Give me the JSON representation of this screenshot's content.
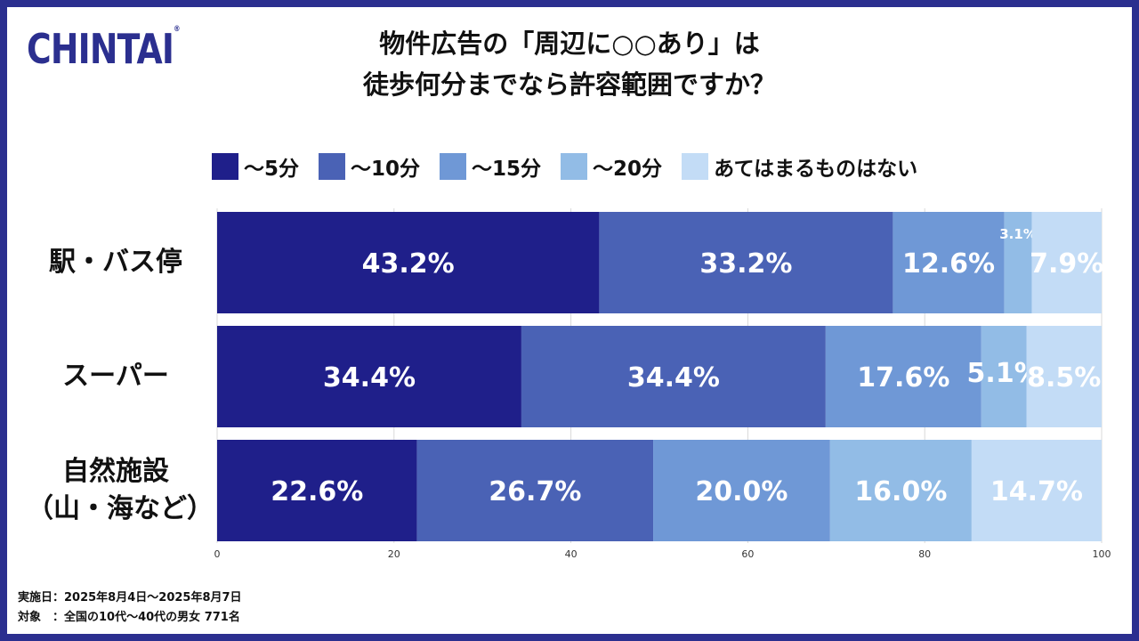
{
  "logo": {
    "text": "CHINTAI",
    "mark": "®"
  },
  "title_line1": "物件広告の「周辺に○○あり」は",
  "title_line2": "徒歩何分までなら許容範囲ですか？",
  "colors": {
    "frame": "#2b2f8f",
    "s1": "#1f1f8a",
    "s2": "#4a62b5",
    "s3": "#6f98d6",
    "s4": "#92bce6",
    "s5": "#c3dcf6"
  },
  "notes": {
    "date": "実施日：2025年8月4日〜2025年8月7日",
    "target": "対象　：全国の10代〜40代の男女 771名"
  },
  "chart_data": {
    "type": "bar",
    "orientation": "horizontal",
    "stacked": true,
    "title": "物件広告の「周辺に○○あり」は 徒歩何分までなら許容範囲ですか？",
    "categories": [
      "駅・バス停",
      "スーパー",
      "自然施設（山・海など）"
    ],
    "category_lines": [
      [
        "駅・バス停"
      ],
      [
        "スーパー"
      ],
      [
        "自然施設",
        "（山・海など）"
      ]
    ],
    "series": [
      {
        "name": "〜5分",
        "values": [
          43.2,
          34.4,
          22.6
        ],
        "labels": [
          "43.2%",
          "34.4%",
          "22.6%"
        ]
      },
      {
        "name": "〜10分",
        "values": [
          33.2,
          34.4,
          26.7
        ],
        "labels": [
          "33.2%",
          "34.4%",
          "26.7%"
        ]
      },
      {
        "name": "〜15分",
        "values": [
          12.6,
          17.6,
          20.0
        ],
        "labels": [
          "12.6%",
          "17.6%",
          "20.0%"
        ]
      },
      {
        "name": "〜20分",
        "values": [
          3.1,
          5.1,
          16.0
        ],
        "labels": [
          "3.1%",
          "5.1%",
          "16.0%"
        ]
      },
      {
        "name": "あてはまるものはない",
        "values": [
          7.9,
          8.5,
          14.7
        ],
        "labels": [
          "7.9%",
          "8.5%",
          "14.7%"
        ]
      }
    ],
    "xlim": [
      0,
      100
    ],
    "xticks": [
      "0",
      "20",
      "40",
      "60",
      "80",
      "100"
    ],
    "xtick_values": [
      0,
      20,
      40,
      60,
      80,
      100
    ],
    "legend": "top",
    "grid": true
  }
}
